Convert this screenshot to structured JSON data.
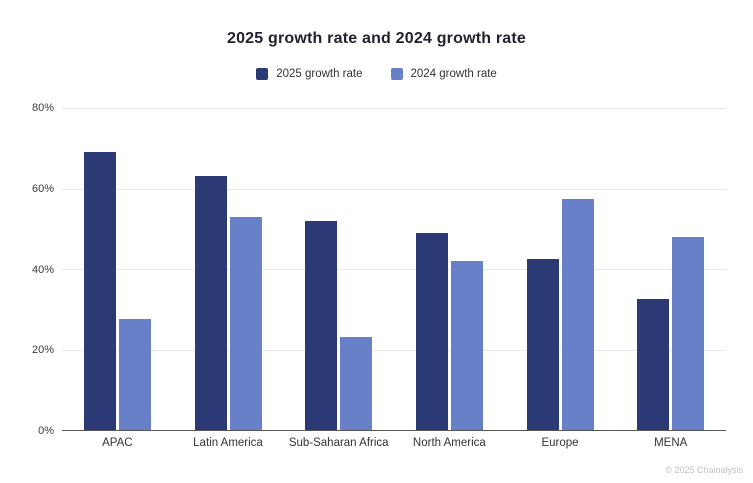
{
  "chart_data": {
    "type": "bar",
    "title": "2025 growth rate and 2024 growth rate",
    "categories": [
      "APAC",
      "Latin America",
      "Sub-Saharan Africa",
      "North America",
      "Europe",
      "MENA"
    ],
    "series": [
      {
        "name": "2025 growth rate",
        "color": "#2b3a74",
        "values": [
          69,
          63,
          52,
          49,
          42.5,
          32.5
        ]
      },
      {
        "name": "2024 growth rate",
        "color": "#6880c8",
        "values": [
          27.5,
          53,
          23,
          42,
          57.5,
          48
        ]
      }
    ],
    "xlabel": "",
    "ylabel": "",
    "ylim": [
      0,
      80
    ],
    "yticks": [
      "80%",
      "60%",
      "40%",
      "20%",
      "0%"
    ],
    "grid": true,
    "legend_position": "top",
    "footer": "© 2025 Chainalysis"
  }
}
